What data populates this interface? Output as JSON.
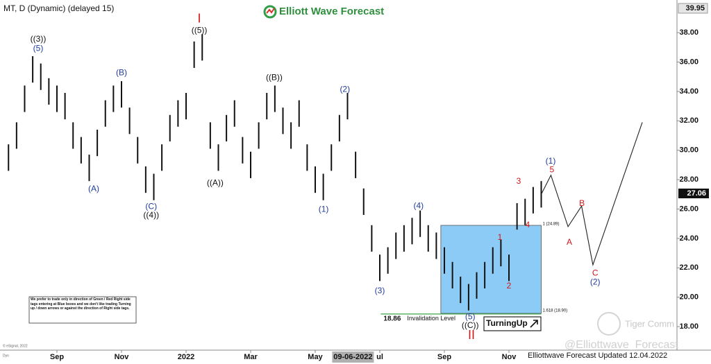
{
  "chart_data": {
    "type": "ohlc",
    "title": "MT, D (Dynamic) (delayed 15)",
    "brand": "Elliott Wave Forecast",
    "footer": "Elliottwave Forecast Updated 12.04.2022",
    "watermark": "@Elliottwave_Forecast",
    "watermark2": "Tiger Comm",
    "copyright": "© eSignal, 2022",
    "interval_tag": "Dyn",
    "disclaimer": "We prefer to trade only in direction of Green / Red Right side tags entering at Blue boxes and we don't like trading Turning up / down arrows or against the direction of Right side tags.",
    "badge": "TurningUp",
    "xlim": [
      -0.763,
      20.204
    ],
    "ylim": [
      16.4,
      40.22
    ],
    "xticks": [
      {
        "value": 1,
        "label": "Sep"
      },
      {
        "value": 3,
        "label": "Nov"
      },
      {
        "value": 5,
        "label": "2022"
      },
      {
        "value": 7,
        "label": "Mar"
      },
      {
        "value": 9,
        "label": "May"
      },
      {
        "value": 11,
        "label": "ul"
      },
      {
        "value": 13,
        "label": "Sep"
      },
      {
        "value": 15,
        "label": "Nov"
      }
    ],
    "cursor_date": {
      "value": 10.17,
      "label": "09-06-2022"
    },
    "yticks": [
      {
        "value": 18,
        "label": "18.00"
      },
      {
        "value": 20,
        "label": "20.00"
      },
      {
        "value": 22,
        "label": "22.00"
      },
      {
        "value": 24,
        "label": "24.00"
      },
      {
        "value": 26,
        "label": "26.00"
      },
      {
        "value": 28,
        "label": "28.00"
      },
      {
        "value": 30,
        "label": "30.00"
      },
      {
        "value": 32,
        "label": "32.00"
      },
      {
        "value": 34,
        "label": "34.00"
      },
      {
        "value": 36,
        "label": "36.00"
      },
      {
        "value": 38,
        "label": "38.00"
      }
    ],
    "top_price": 39.95,
    "last_price": 27.06,
    "color": "#111111",
    "bars": [
      [
        -0.5,
        30.4,
        28.6
      ],
      [
        -0.25,
        31.9,
        30.1
      ],
      [
        0,
        34.4,
        32.6
      ],
      [
        0.25,
        36.4,
        34.6
      ],
      [
        0.5,
        35.9,
        34.1
      ],
      [
        0.75,
        34.9,
        33.1
      ],
      [
        1,
        34.4,
        32.6
      ],
      [
        1.25,
        33.9,
        32.1
      ],
      [
        1.5,
        31.9,
        30.1
      ],
      [
        1.75,
        30.9,
        29.1
      ],
      [
        2,
        29.7,
        27.9
      ],
      [
        2.25,
        31.4,
        29.6
      ],
      [
        2.5,
        33.4,
        31.6
      ],
      [
        2.75,
        34.4,
        32.6
      ],
      [
        3,
        34.7,
        32.9
      ],
      [
        3.25,
        32.9,
        31.1
      ],
      [
        3.5,
        30.9,
        29.1
      ],
      [
        3.75,
        28.9,
        27.1
      ],
      [
        4,
        28.4,
        26.6
      ],
      [
        4.25,
        30.4,
        28.6
      ],
      [
        4.5,
        32.4,
        30.6
      ],
      [
        4.75,
        33.4,
        31.6
      ],
      [
        5,
        33.9,
        32.1
      ],
      [
        5.25,
        37.4,
        35.6
      ],
      [
        5.5,
        37.9,
        36.1
      ],
      [
        5.75,
        31.9,
        30.1
      ],
      [
        6,
        30.4,
        28.6
      ],
      [
        6.25,
        32.4,
        30.6
      ],
      [
        6.5,
        33.4,
        31.6
      ],
      [
        6.75,
        30.9,
        29.1
      ],
      [
        7,
        29.9,
        28.1
      ],
      [
        7.25,
        31.9,
        30.1
      ],
      [
        7.5,
        33.9,
        32.1
      ],
      [
        7.75,
        34.4,
        32.6
      ],
      [
        8,
        32.9,
        31.1
      ],
      [
        8.25,
        31.9,
        30.1
      ],
      [
        8.5,
        33.4,
        31.6
      ],
      [
        8.75,
        30.4,
        28.6
      ],
      [
        9,
        28.9,
        27.1
      ],
      [
        9.25,
        28.4,
        26.6
      ],
      [
        9.5,
        30.4,
        28.6
      ],
      [
        9.75,
        32.4,
        30.6
      ],
      [
        10,
        33.9,
        32.1
      ],
      [
        10.25,
        29.9,
        28.1
      ],
      [
        10.5,
        27.4,
        25.6
      ],
      [
        10.75,
        24.9,
        23.1
      ],
      [
        11,
        22.9,
        21.1
      ],
      [
        11.25,
        23.4,
        21.6
      ],
      [
        11.5,
        24.4,
        22.6
      ],
      [
        11.75,
        24.9,
        23.1
      ],
      [
        12,
        25.4,
        23.6
      ],
      [
        12.25,
        25.9,
        24.1
      ],
      [
        12.5,
        24.9,
        23.1
      ],
      [
        12.75,
        24.4,
        22.6
      ],
      [
        13,
        23.4,
        21.6
      ],
      [
        13.25,
        22.4,
        20.6
      ],
      [
        13.5,
        21.4,
        19.6
      ],
      [
        13.75,
        20.9,
        19.1
      ],
      [
        14,
        21.7,
        19.9
      ],
      [
        14.25,
        22.4,
        20.6
      ],
      [
        14.5,
        23.4,
        21.6
      ],
      [
        14.75,
        23.9,
        22.1
      ],
      [
        15,
        22.9,
        21.1
      ],
      [
        15.25,
        26.4,
        24.6
      ],
      [
        15.5,
        26.7,
        24.9
      ],
      [
        15.75,
        27.5,
        25.7
      ],
      [
        16,
        27.9,
        26.1
      ]
    ],
    "projection": {
      "color": "#222222",
      "x": [
        16,
        16.3,
        16.83,
        17.25,
        17.6,
        19.13
      ],
      "values": [
        27,
        28.3,
        24.8,
        26.2,
        22.2,
        31.9
      ]
    },
    "blue_box": {
      "color": "#8ccbf5",
      "x": [
        12.89,
        16.0
      ],
      "high": {
        "value": 24.89,
        "label": "1 (24.89)"
      },
      "low": {
        "value": 18.9,
        "label": "1.618 (18.90)"
      }
    },
    "invalidation": {
      "value": 18.86,
      "label": "18.86",
      "text": "Invalidation Level",
      "x": [
        11.03,
        16.0
      ],
      "color": "#3aa64a"
    },
    "annotations": [
      {
        "text": "((3))",
        "x": 0.42,
        "y": 37.53,
        "color": "#111111"
      },
      {
        "text": "(5)",
        "x": 0.42,
        "y": 36.9,
        "color": "#1f3c99"
      },
      {
        "text": "(A)",
        "x": 2.14,
        "y": 27.34,
        "color": "#1f3c99"
      },
      {
        "text": "(B)",
        "x": 3.0,
        "y": 35.26,
        "color": "#1f3c99"
      },
      {
        "text": "(C)",
        "x": 3.92,
        "y": 26.16,
        "color": "#1f3c99"
      },
      {
        "text": "((4))",
        "x": 3.92,
        "y": 25.55,
        "color": "#111111"
      },
      {
        "text": "I",
        "x": 5.41,
        "y": 38.9,
        "color": "#d01818"
      },
      {
        "text": "((5))",
        "x": 5.41,
        "y": 38.14,
        "color": "#111111"
      },
      {
        "text": "((A))",
        "x": 5.9,
        "y": 27.76,
        "color": "#111111"
      },
      {
        "text": "((B))",
        "x": 7.73,
        "y": 34.93,
        "color": "#111111"
      },
      {
        "text": "(1)",
        "x": 9.26,
        "y": 25.97,
        "color": "#1f3c99"
      },
      {
        "text": "(2)",
        "x": 9.92,
        "y": 34.13,
        "color": "#1f3c99"
      },
      {
        "text": "(3)",
        "x": 11.0,
        "y": 20.41,
        "color": "#1f3c99"
      },
      {
        "text": "(4)",
        "x": 12.2,
        "y": 26.2,
        "color": "#1f3c99"
      },
      {
        "text": "(5)",
        "x": 13.8,
        "y": 18.66,
        "color": "#1f3c99"
      },
      {
        "text": "((C))",
        "x": 13.8,
        "y": 18.05,
        "color": "#111111"
      },
      {
        "text": "II",
        "x": 13.84,
        "y": 17.39,
        "color": "#d01818"
      },
      {
        "text": "1",
        "x": 14.72,
        "y": 24.04,
        "color": "#d01818"
      },
      {
        "text": "2",
        "x": 15.0,
        "y": 20.74,
        "color": "#d01818"
      },
      {
        "text": "3",
        "x": 15.3,
        "y": 27.86,
        "color": "#d01818"
      },
      {
        "text": "4",
        "x": 15.58,
        "y": 24.89,
        "color": "#d01818"
      },
      {
        "text": "(1)",
        "x": 16.29,
        "y": 29.23,
        "color": "#1f3c99"
      },
      {
        "text": "5",
        "x": 16.33,
        "y": 28.66,
        "color": "#d01818"
      },
      {
        "text": "A",
        "x": 16.87,
        "y": 23.71,
        "color": "#d01818"
      },
      {
        "text": "B",
        "x": 17.26,
        "y": 26.35,
        "color": "#d01818"
      },
      {
        "text": "C",
        "x": 17.67,
        "y": 21.63,
        "color": "#d01818"
      },
      {
        "text": "(2)",
        "x": 17.67,
        "y": 21.0,
        "color": "#1f3c99"
      }
    ]
  }
}
